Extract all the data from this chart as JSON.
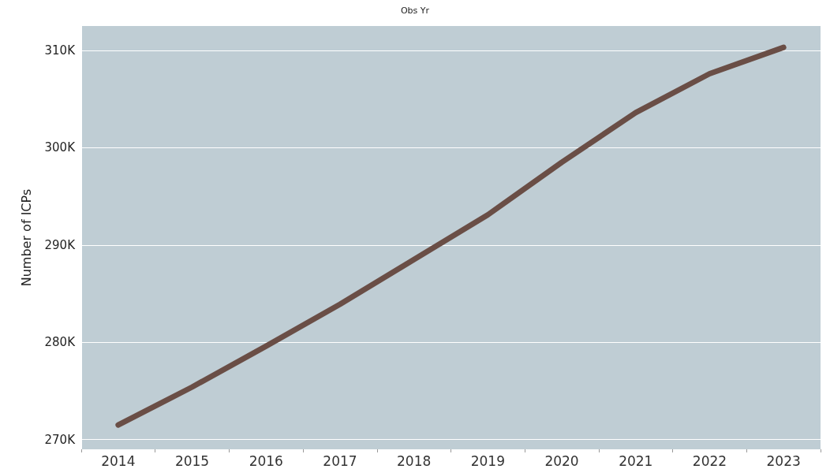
{
  "chart_data": {
    "type": "line",
    "xlabel": "Obs Yr",
    "ylabel": "Number of ICPs",
    "categories": [
      "2014",
      "2015",
      "2016",
      "2017",
      "2018",
      "2019",
      "2020",
      "2021",
      "2022",
      "2023"
    ],
    "series": [
      {
        "color": "#6a4e46",
        "values": [
          271500,
          275400,
          279600,
          283900,
          288500,
          293100,
          298500,
          303600,
          307600,
          310300
        ]
      }
    ],
    "ylim": [
      269000,
      312500
    ],
    "yticks": [
      {
        "value": 270000,
        "label": "270K"
      },
      {
        "value": 280000,
        "label": "280K"
      },
      {
        "value": 290000,
        "label": "290K"
      },
      {
        "value": 300000,
        "label": "300K"
      },
      {
        "value": 310000,
        "label": "310K"
      }
    ],
    "grid": "y",
    "marker": "none",
    "line_style": "solid"
  }
}
